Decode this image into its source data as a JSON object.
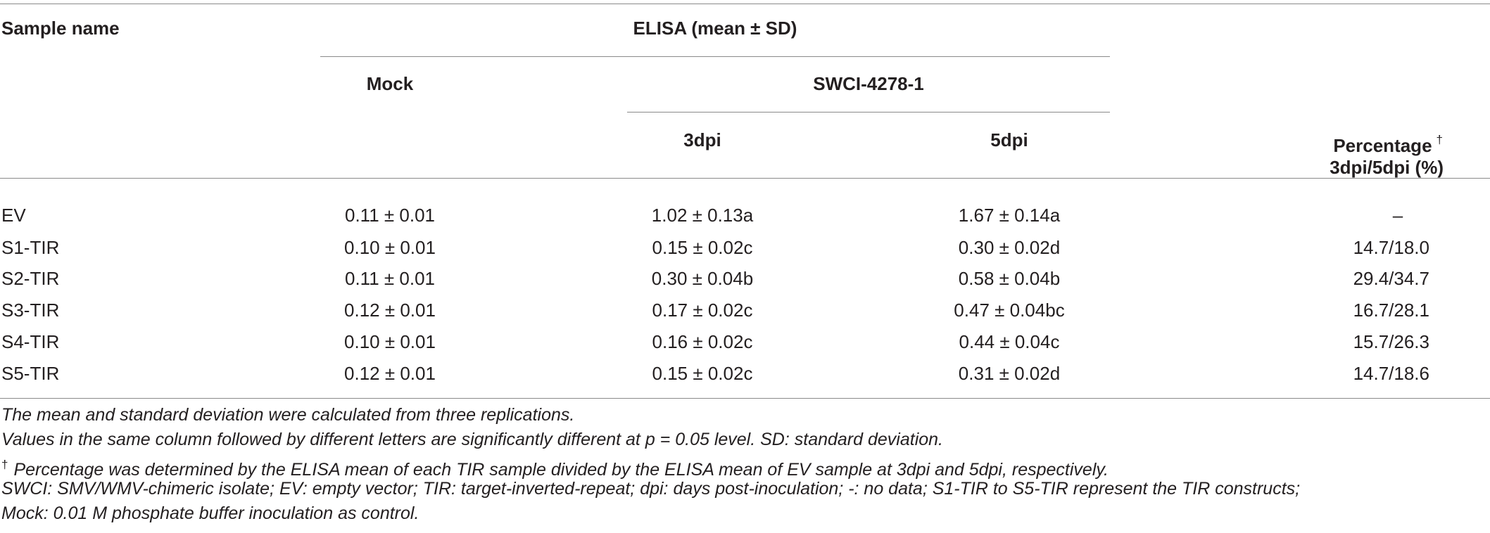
{
  "table": {
    "headers": {
      "sample_name": "Sample name",
      "elisa": "ELISA (mean ± SD)",
      "mock": "Mock",
      "swci": "SWCI-4278-1",
      "dpi3": "3dpi",
      "dpi5": "5dpi",
      "percentage_line1": "Percentage",
      "percentage_dagger": "†",
      "percentage_line2": "3dpi/5dpi (%)"
    },
    "rows": [
      {
        "sample": "EV",
        "mock": "0.11 ± 0.01",
        "dpi3": "1.02 ± 0.13a",
        "dpi5": "1.67 ± 0.14a",
        "percentage": "–"
      },
      {
        "sample": "S1-TIR",
        "mock": "0.10 ± 0.01",
        "dpi3": "0.15 ± 0.02c",
        "dpi5": "0.30 ± 0.02d",
        "percentage": "14.7/18.0"
      },
      {
        "sample": "S2-TIR",
        "mock": "0.11 ± 0.01",
        "dpi3": "0.30 ± 0.04b",
        "dpi5": "0.58 ± 0.04b",
        "percentage": "29.4/34.7"
      },
      {
        "sample": "S3-TIR",
        "mock": "0.12 ± 0.01",
        "dpi3": "0.17 ± 0.02c",
        "dpi5": "0.47 ± 0.04bc",
        "percentage": "16.7/28.1"
      },
      {
        "sample": "S4-TIR",
        "mock": "0.10 ± 0.01",
        "dpi3": "0.16 ± 0.02c",
        "dpi5": "0.44 ± 0.04c",
        "percentage": "15.7/26.3"
      },
      {
        "sample": "S5-TIR",
        "mock": "0.12 ± 0.01",
        "dpi3": "0.15 ± 0.02c",
        "dpi5": "0.31 ± 0.02d",
        "percentage": "14.7/18.6"
      }
    ]
  },
  "footnotes": {
    "line1": "The mean and standard deviation were calculated from three replications.",
    "line2": "Values in the same column followed by different letters are significantly different at p = 0.05 level. SD: standard deviation.",
    "line3_dagger": "†",
    "line3": "Percentage was determined by the ELISA mean of each TIR sample divided by the ELISA mean of EV sample at 3dpi and 5dpi, respectively.",
    "line4": "SWCI: SMV/WMV-chimeric isolate; EV: empty vector; TIR: target-inverted-repeat; dpi: days post-inoculation; -: no data; S1-TIR to S5-TIR represent the TIR constructs;",
    "line5": "Mock: 0.01 M phosphate buffer inoculation as control."
  }
}
